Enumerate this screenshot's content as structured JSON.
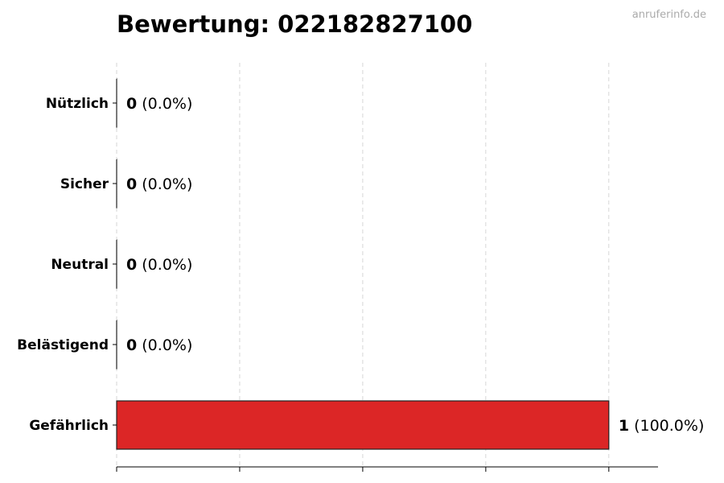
{
  "chart_data": {
    "type": "bar",
    "orientation": "horizontal",
    "title": "Bewertung: 022182827100",
    "watermark": "anruferinfo.de",
    "categories": [
      "Nützlich",
      "Sicher",
      "Neutral",
      "Belästigend",
      "Gefährlich"
    ],
    "values": [
      0,
      0,
      0,
      0,
      1
    ],
    "value_labels": [
      "0",
      "0",
      "0",
      "0",
      "1"
    ],
    "percent_labels": [
      "(0.0%)",
      "(0.0%)",
      "(0.0%)",
      "(0.0%)",
      "(100.0%)"
    ],
    "xlim": [
      0,
      1.1
    ],
    "xticks": [
      0,
      0.25,
      0.5,
      0.75,
      1.0
    ],
    "xtick_labels_shown": false,
    "grid": "vertical dashed",
    "legend": "none",
    "colors": {
      "bar": "#dc2626",
      "edge": "#222222",
      "grid": "#cccccc",
      "watermark": "#aaaaaa"
    }
  }
}
